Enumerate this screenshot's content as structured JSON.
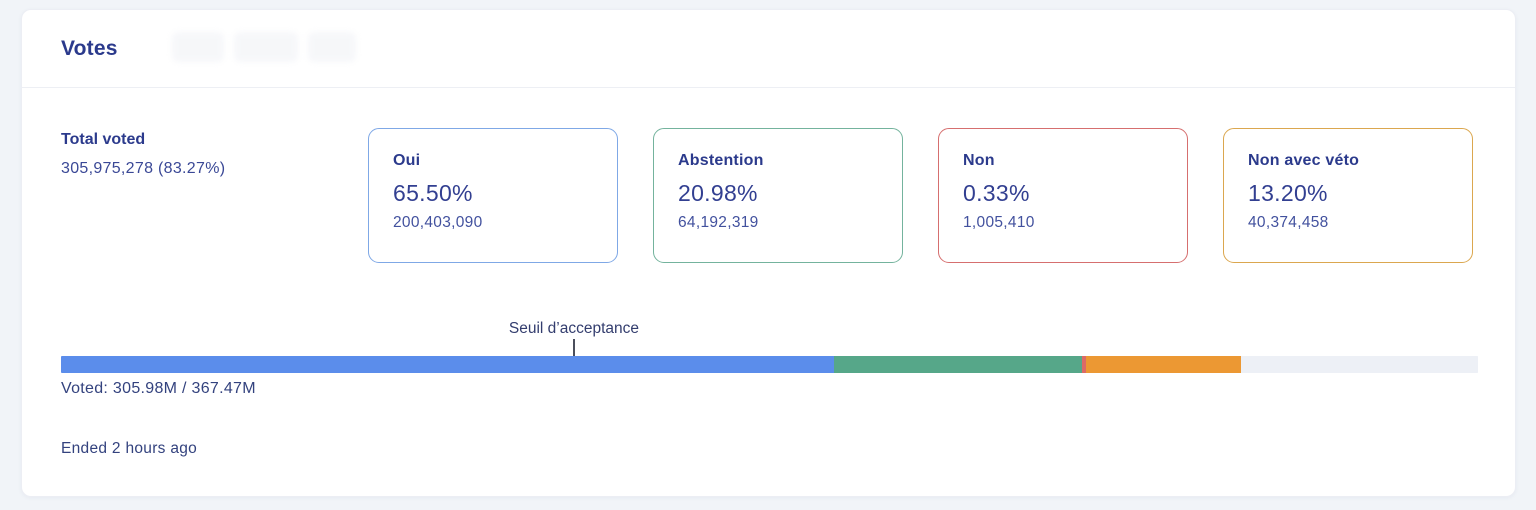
{
  "panel": {
    "title": "Votes",
    "total_voted_label": "Total voted",
    "total_voted_value": "305,975,278 (83.27%)",
    "voted_summary": "Voted: 305.98M / 367.47M",
    "ended_status": "Ended 2 hours ago"
  },
  "options": [
    {
      "label": "Oui",
      "percent": "65.50%",
      "count": "200,403,090",
      "border_color": "#7fa8e6"
    },
    {
      "label": "Abstention",
      "percent": "20.98%",
      "count": "64,192,319",
      "border_color": "#74b39d"
    },
    {
      "label": "Non",
      "percent": "0.33%",
      "count": "1,005,410",
      "border_color": "#d66f6f"
    },
    {
      "label": "Non avec véto",
      "percent": "13.20%",
      "count": "40,374,458",
      "border_color": "#dba74f"
    }
  ],
  "chart_data": {
    "type": "bar",
    "title": "Votes",
    "categories": [
      "Oui",
      "Abstention",
      "Non",
      "Non avec véto"
    ],
    "series": [
      {
        "name": "percent_of_voted",
        "values": [
          65.5,
          20.98,
          0.33,
          13.2
        ]
      },
      {
        "name": "tokens",
        "values": [
          200403090,
          64192319,
          1005410,
          40374458
        ]
      }
    ],
    "total_voted_tokens": 305975278,
    "turnout_percent": 83.27,
    "voted_display": "305.98M",
    "total_display": "367.47M",
    "threshold_label": "Seuil d’acceptance",
    "threshold_position_percent_of_bar": 36.2,
    "bar_segments": [
      {
        "name": "oui",
        "width_percent": 54.55,
        "color": "#5b8deb"
      },
      {
        "name": "abstention",
        "width_percent": 17.47,
        "color": "#56a789"
      },
      {
        "name": "non",
        "width_percent": 0.28,
        "color": "#dc6a67"
      },
      {
        "name": "veto",
        "width_percent": 10.99,
        "color": "#ec9833"
      },
      {
        "name": "remainder",
        "width_percent": 16.71,
        "color": "#edf0f6"
      }
    ]
  }
}
